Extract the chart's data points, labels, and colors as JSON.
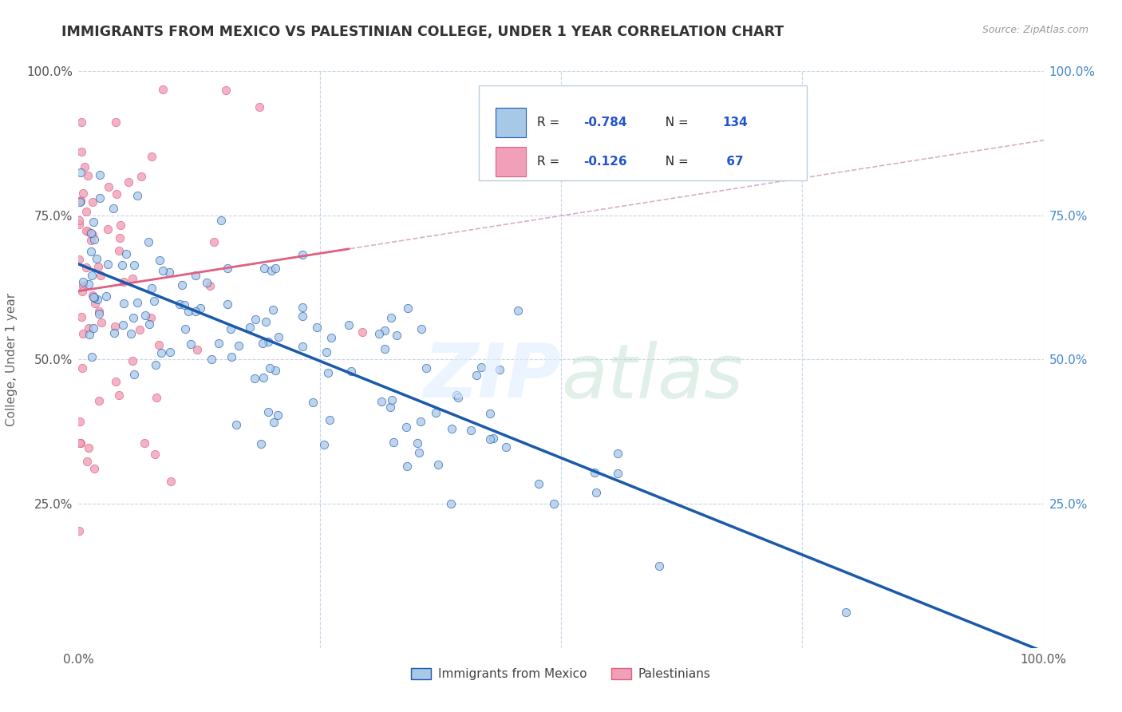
{
  "title": "IMMIGRANTS FROM MEXICO VS PALESTINIAN COLLEGE, UNDER 1 YEAR CORRELATION CHART",
  "source": "Source: ZipAtlas.com",
  "ylabel": "College, Under 1 year",
  "legend_label_1": "Immigrants from Mexico",
  "legend_label_2": "Palestinians",
  "R1": -0.784,
  "N1": 134,
  "R2": -0.126,
  "N2": 67,
  "color_blue": "#a8c8e8",
  "color_pink": "#f0a0b8",
  "line_blue": "#1a5aab",
  "line_pink": "#e06080",
  "line_dashed_color": "#d0a0c0",
  "watermark": "ZIPatlas",
  "background_color": "#ffffff",
  "grid_color": "#c8d4e8",
  "title_color": "#333333",
  "axis_label_color": "#666666",
  "right_tick_color": "#4488cc",
  "legend_border_color": "#bbccdd",
  "seed": 42
}
